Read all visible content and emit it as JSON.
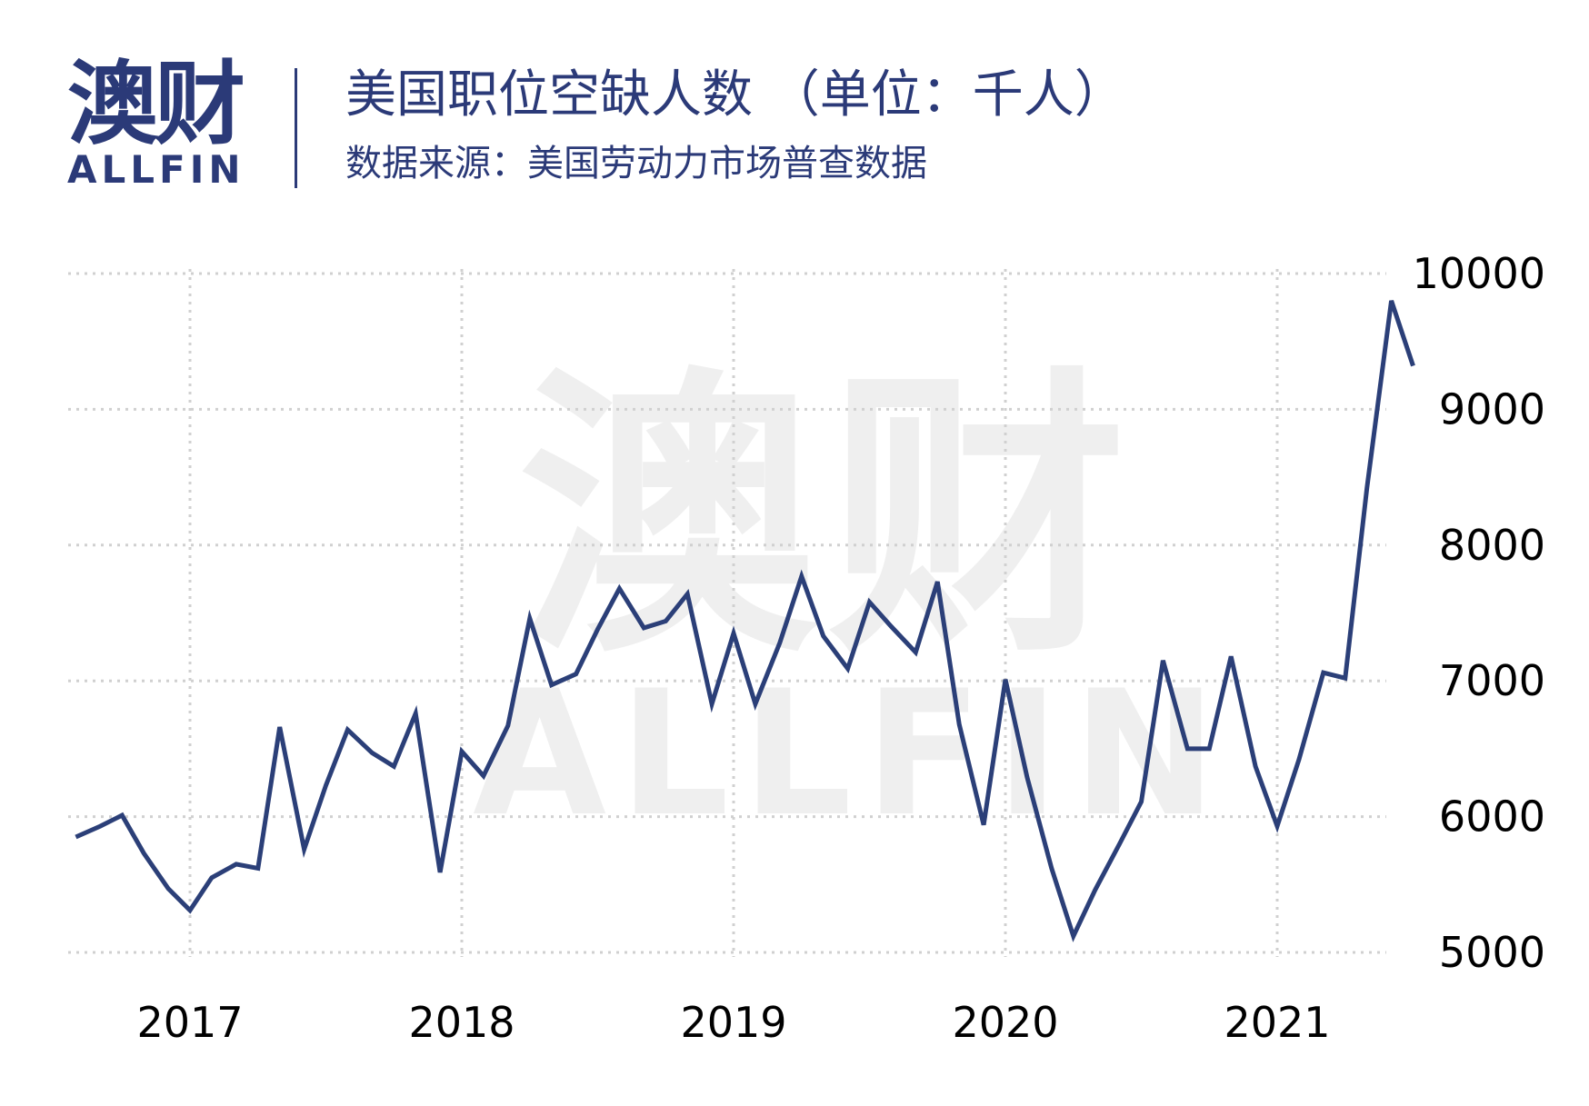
{
  "logo": {
    "cn": "澳财",
    "en": "ALLFIN"
  },
  "watermark": {
    "cn": "澳财",
    "en": "ALLFIN"
  },
  "header": {
    "title": "美国职位空缺人数 （单位：千人）",
    "subtitle": "数据来源：美国劳动力市场普查数据"
  },
  "colors": {
    "brand": "#2b3a78",
    "line": "#2b3f78",
    "grid": "#d0d0d0",
    "watermark": "#efefef"
  },
  "chart_data": {
    "type": "line",
    "title": "美国职位空缺人数 （单位：千人）",
    "xlabel": "",
    "ylabel": "",
    "yticks": [
      "10000",
      "9000",
      "8000",
      "7000",
      "6000",
      "5000"
    ],
    "ylim": [
      5000,
      10000
    ],
    "xticks": [
      "2017",
      "2018",
      "2019",
      "2020",
      "2021"
    ],
    "y_axis_side": "right",
    "grid": "dotted",
    "series": [
      {
        "values": [
          {
            "x": 2016.58,
            "y": 5850
          },
          {
            "x": 2016.67,
            "y": 5930
          },
          {
            "x": 2016.75,
            "y": 6010
          },
          {
            "x": 2016.83,
            "y": 5730
          },
          {
            "x": 2016.92,
            "y": 5470
          },
          {
            "x": 2017.0,
            "y": 5310
          },
          {
            "x": 2017.08,
            "y": 5550
          },
          {
            "x": 2017.17,
            "y": 5650
          },
          {
            "x": 2017.25,
            "y": 5620
          },
          {
            "x": 2017.33,
            "y": 6660
          },
          {
            "x": 2017.42,
            "y": 5760
          },
          {
            "x": 2017.5,
            "y": 6230
          },
          {
            "x": 2017.58,
            "y": 6640
          },
          {
            "x": 2017.67,
            "y": 6470
          },
          {
            "x": 2017.75,
            "y": 6370
          },
          {
            "x": 2017.83,
            "y": 6760
          },
          {
            "x": 2017.92,
            "y": 5590
          },
          {
            "x": 2018.0,
            "y": 6480
          },
          {
            "x": 2018.08,
            "y": 6300
          },
          {
            "x": 2018.17,
            "y": 6670
          },
          {
            "x": 2018.25,
            "y": 7460
          },
          {
            "x": 2018.33,
            "y": 6970
          },
          {
            "x": 2018.42,
            "y": 7050
          },
          {
            "x": 2018.5,
            "y": 7380
          },
          {
            "x": 2018.58,
            "y": 7680
          },
          {
            "x": 2018.67,
            "y": 7390
          },
          {
            "x": 2018.75,
            "y": 7440
          },
          {
            "x": 2018.83,
            "y": 7640
          },
          {
            "x": 2018.92,
            "y": 6830
          },
          {
            "x": 2019.0,
            "y": 7350
          },
          {
            "x": 2019.08,
            "y": 6830
          },
          {
            "x": 2019.17,
            "y": 7280
          },
          {
            "x": 2019.25,
            "y": 7770
          },
          {
            "x": 2019.33,
            "y": 7330
          },
          {
            "x": 2019.42,
            "y": 7090
          },
          {
            "x": 2019.5,
            "y": 7580
          },
          {
            "x": 2019.58,
            "y": 7400
          },
          {
            "x": 2019.67,
            "y": 7210
          },
          {
            "x": 2019.75,
            "y": 7730
          },
          {
            "x": 2019.83,
            "y": 6680
          },
          {
            "x": 2019.92,
            "y": 5940
          },
          {
            "x": 2020.0,
            "y": 7010
          },
          {
            "x": 2020.08,
            "y": 6290
          },
          {
            "x": 2020.17,
            "y": 5620
          },
          {
            "x": 2020.25,
            "y": 5120
          },
          {
            "x": 2020.33,
            "y": 5460
          },
          {
            "x": 2020.42,
            "y": 5800
          },
          {
            "x": 2020.5,
            "y": 6110
          },
          {
            "x": 2020.58,
            "y": 7150
          },
          {
            "x": 2020.67,
            "y": 6500
          },
          {
            "x": 2020.75,
            "y": 6500
          },
          {
            "x": 2020.83,
            "y": 7180
          },
          {
            "x": 2020.92,
            "y": 6370
          },
          {
            "x": 2021.0,
            "y": 5930
          },
          {
            "x": 2021.08,
            "y": 6420
          },
          {
            "x": 2021.17,
            "y": 7060
          },
          {
            "x": 2021.25,
            "y": 7020
          },
          {
            "x": 2021.33,
            "y": 8420
          },
          {
            "x": 2021.42,
            "y": 9800
          },
          {
            "x": 2021.5,
            "y": 9320
          }
        ]
      }
    ]
  }
}
